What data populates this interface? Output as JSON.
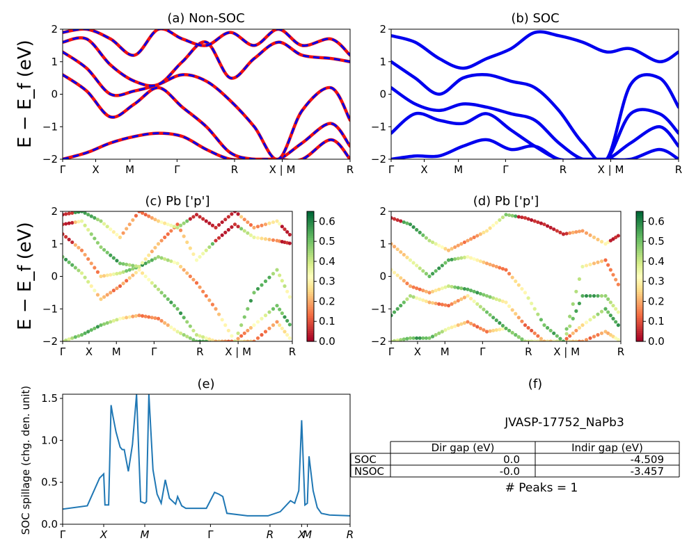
{
  "panels": {
    "a": {
      "title": "(a) Non-SOC"
    },
    "b": {
      "title": "(b) SOC"
    },
    "c": {
      "title": "(c)  Pb ['p']"
    },
    "d": {
      "title": "(d) Pb ['p']"
    },
    "e": {
      "title": "(e)",
      "ylabel": "SOC spillage (chg. den. unit)"
    },
    "f": {
      "title": "(f)",
      "material": "JVASP-17752_NaPb3",
      "peaks": "# Peaks = 1"
    }
  },
  "band_ylabel": "E − E_f (eV)",
  "kpath_labels": [
    "Γ",
    "X",
    "M",
    "Γ",
    "R",
    "X | M",
    "R"
  ],
  "spillage_xlabels": [
    "Γ",
    "X",
    "M",
    "Γ",
    "R",
    "X",
    "M",
    "R"
  ],
  "colorbar_ticks": [
    "0.0",
    "0.1",
    "0.2",
    "0.3",
    "0.4",
    "0.5",
    "0.6"
  ],
  "table": {
    "headers": [
      "",
      "Dir gap (eV)",
      "Indir gap (eV)"
    ],
    "rows": [
      [
        "SOC",
        "0.0",
        "-4.509"
      ],
      [
        "NSOC",
        "-0.0",
        "-3.457"
      ]
    ]
  },
  "colors": {
    "soc": "#0000ee",
    "nonsoc": "#ee1111",
    "spillage": "#1f77b4"
  },
  "chart_data": [
    {
      "type": "line",
      "panel": "a",
      "title": "(a) Non-SOC",
      "ylim": [
        -2,
        2
      ],
      "yticks": [
        -2,
        -1,
        0,
        1,
        2
      ],
      "xticks": [
        "Γ",
        "X",
        "M",
        "Γ",
        "R",
        "X | M",
        "R"
      ],
      "series": [
        {
          "x": [
            0,
            0.5,
            1,
            1.5,
            2,
            2.5,
            3,
            3.5,
            4,
            4.5,
            5,
            5.6,
            6
          ],
          "values": [
            -2.0,
            -1.8,
            -1.5,
            -1.3,
            -1.2,
            -1.3,
            -1.7,
            -2.0,
            -2.0,
            -2.0,
            -2.0,
            -1.4,
            -2.0
          ]
        },
        {
          "x": [
            0,
            0.5,
            1,
            1.5,
            2,
            2.5,
            3,
            3.5,
            4,
            4.5,
            5,
            5.6,
            6
          ],
          "values": [
            0.6,
            0.1,
            -0.7,
            -0.3,
            0.2,
            -0.4,
            -1.0,
            -1.8,
            -2.0,
            -2.0,
            -1.5,
            -0.9,
            -1.6
          ]
        },
        {
          "x": [
            0,
            0.5,
            1,
            1.5,
            2,
            2.5,
            3,
            3.5,
            4,
            4.5,
            5,
            5.6,
            6
          ],
          "values": [
            1.3,
            0.8,
            0.0,
            0.1,
            0.3,
            0.6,
            0.4,
            -0.2,
            -1.0,
            -2.0,
            -0.5,
            0.2,
            -0.8
          ]
        },
        {
          "x": [
            0,
            0.5,
            1,
            1.5,
            2,
            2.5,
            3,
            3.5,
            4,
            4.5,
            5,
            5.6,
            6
          ],
          "values": [
            1.6,
            1.7,
            0.9,
            0.4,
            0.3,
            1.0,
            1.6,
            0.5,
            1.1,
            1.6,
            1.2,
            1.1,
            1.0
          ]
        },
        {
          "x": [
            0,
            0.5,
            1,
            1.5,
            2,
            2.5,
            3,
            3.5,
            4,
            4.5,
            5,
            5.6,
            6
          ],
          "values": [
            1.9,
            2.0,
            1.7,
            1.2,
            2.0,
            1.7,
            1.5,
            1.9,
            1.5,
            2.0,
            1.5,
            1.7,
            1.2
          ]
        }
      ]
    },
    {
      "type": "line",
      "panel": "b",
      "title": "(b) SOC",
      "ylim": [
        -2,
        2
      ],
      "yticks": [
        -2,
        -1,
        0,
        1,
        2
      ],
      "xticks": [
        "Γ",
        "X",
        "M",
        "Γ",
        "R",
        "X | M",
        "R"
      ],
      "series": [
        {
          "x": [
            0,
            0.5,
            1,
            1.5,
            2,
            2.5,
            3,
            3.5,
            4,
            4.5,
            5,
            5.6,
            6
          ],
          "values": [
            -2.0,
            -1.9,
            -1.9,
            -1.6,
            -1.4,
            -1.7,
            -1.6,
            -2.0,
            -2.0,
            -2.0,
            -2.0,
            -1.7,
            -2.0
          ]
        },
        {
          "x": [
            0,
            0.5,
            1,
            1.5,
            2,
            2.5,
            3,
            3.5,
            4,
            4.5,
            5,
            5.6,
            6
          ],
          "values": [
            -1.2,
            -0.6,
            -0.8,
            -0.9,
            -0.6,
            -1.1,
            -1.6,
            -2.0,
            -2.0,
            -2.0,
            -1.5,
            -1.0,
            -1.6
          ]
        },
        {
          "x": [
            0,
            0.5,
            1,
            1.5,
            2,
            2.5,
            3,
            3.5,
            4,
            4.5,
            5,
            5.6,
            6
          ],
          "values": [
            0.2,
            -0.3,
            -0.5,
            -0.3,
            -0.4,
            -0.6,
            -0.8,
            -1.5,
            -2.0,
            -2.0,
            -0.6,
            -0.6,
            -1.2
          ]
        },
        {
          "x": [
            0,
            0.5,
            1,
            1.5,
            2,
            2.5,
            3,
            3.5,
            4,
            4.5,
            5,
            5.6,
            6
          ],
          "values": [
            1.0,
            0.5,
            0.0,
            0.5,
            0.6,
            0.4,
            0.2,
            -0.5,
            -1.5,
            -2.0,
            0.3,
            0.5,
            -0.4
          ]
        },
        {
          "x": [
            0,
            0.5,
            1,
            1.5,
            2,
            2.5,
            3,
            3.5,
            4,
            4.5,
            5,
            5.6,
            6
          ],
          "values": [
            1.8,
            1.6,
            1.1,
            0.8,
            1.1,
            1.4,
            1.9,
            1.8,
            1.6,
            1.3,
            1.4,
            1.0,
            1.3
          ]
        }
      ]
    },
    {
      "type": "scatter",
      "panel": "c",
      "title": "(c)  Pb ['p']",
      "ylim": [
        -2,
        2
      ],
      "colorbar_range": [
        0.0,
        0.65
      ],
      "xticks": [
        "Γ",
        "X",
        "M",
        "Γ",
        "R",
        "X | M",
        "R"
      ]
    },
    {
      "type": "scatter",
      "panel": "d",
      "title": "(d) Pb ['p']",
      "ylim": [
        -2,
        2
      ],
      "colorbar_range": [
        0.0,
        0.65
      ],
      "xticks": [
        "Γ",
        "X",
        "M",
        "Γ",
        "R",
        "X | M",
        "R"
      ]
    },
    {
      "type": "line",
      "panel": "e",
      "title": "(e)",
      "ylabel": "SOC spillage (chg. den. unit)",
      "ylim": [
        0,
        1.55
      ],
      "yticks": [
        0.0,
        0.5,
        1.0,
        1.5
      ],
      "x": [
        0,
        0.6,
        0.9,
        1.0,
        1.03,
        1.08,
        1.12,
        1.18,
        1.22,
        1.3,
        1.4,
        1.45,
        1.5,
        1.6,
        1.7,
        1.8,
        1.9,
        2.0,
        2.04,
        2.1,
        2.2,
        2.3,
        2.4,
        2.5,
        2.6,
        2.75,
        2.8,
        2.9,
        3.0,
        3.5,
        3.7,
        3.8,
        3.9,
        4.0,
        4.5,
        5.0,
        5.3,
        5.55,
        5.65,
        5.75,
        5.82,
        5.9,
        5.96,
        6.0,
        6.1,
        6.2,
        6.3,
        6.5,
        7.0
      ],
      "values": [
        0.18,
        0.22,
        0.55,
        0.6,
        0.23,
        0.23,
        0.23,
        1.42,
        1.3,
        1.1,
        0.92,
        0.89,
        0.89,
        0.63,
        0.95,
        1.55,
        0.27,
        0.25,
        0.27,
        1.55,
        0.65,
        0.36,
        0.25,
        0.53,
        0.31,
        0.24,
        0.33,
        0.22,
        0.19,
        0.19,
        0.38,
        0.36,
        0.33,
        0.13,
        0.1,
        0.1,
        0.15,
        0.28,
        0.25,
        0.4,
        1.24,
        0.23,
        0.25,
        0.81,
        0.4,
        0.2,
        0.13,
        0.11,
        0.1
      ],
      "xticks": [
        "Γ",
        "X",
        "M",
        "Γ",
        "R",
        "X",
        "M",
        "R"
      ]
    }
  ]
}
